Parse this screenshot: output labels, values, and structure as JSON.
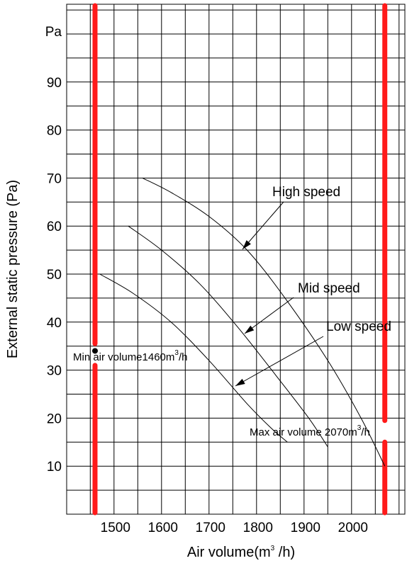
{
  "chart_data": {
    "type": "line",
    "xlabel": "Air volume(m",
    "xlabel_sup": "3",
    "xlabel_tail": " /h)",
    "ylabel": "External static pressure (Pa)",
    "y_unit_label": "Pa",
    "xlim": [
      1400,
      2100
    ],
    "ylim": [
      0,
      105
    ],
    "x_ticks": [
      "1500",
      "1600",
      "1700",
      "1800",
      "1900",
      "2000"
    ],
    "y_ticks": [
      "10",
      "20",
      "30",
      "40",
      "50",
      "60",
      "70",
      "80",
      "90"
    ],
    "grid": true,
    "series": [
      {
        "name": "High speed",
        "x": [
          1560,
          1620,
          1700,
          1780,
          1860,
          1950,
          2020,
          2070
        ],
        "y": [
          70,
          67,
          62,
          55,
          45,
          32,
          20,
          10
        ]
      },
      {
        "name": "Mid speed",
        "x": [
          1530,
          1600,
          1680,
          1760,
          1840,
          1910,
          1950
        ],
        "y": [
          60,
          55,
          48,
          39,
          29,
          20,
          14
        ]
      },
      {
        "name": "Low speed",
        "x": [
          1470,
          1540,
          1620,
          1700,
          1780,
          1830,
          1865
        ],
        "y": [
          50,
          46,
          40,
          32,
          23,
          18,
          15
        ]
      }
    ],
    "annotations": {
      "high": "High speed",
      "mid": "Mid speed",
      "low": "Low speed",
      "min": "Min air volume1460m",
      "min_sup": "3",
      "min_tail": "/h",
      "max": "Max air volume 2070m",
      "max_sup": "3",
      "max_tail": "/h"
    },
    "limits": {
      "min_air_volume": 1460,
      "max_air_volume": 2070,
      "min_point_pressure": 34
    },
    "colors": {
      "limit_line": "#ff1a1a",
      "curve": "#000000",
      "grid": "#000000"
    }
  }
}
